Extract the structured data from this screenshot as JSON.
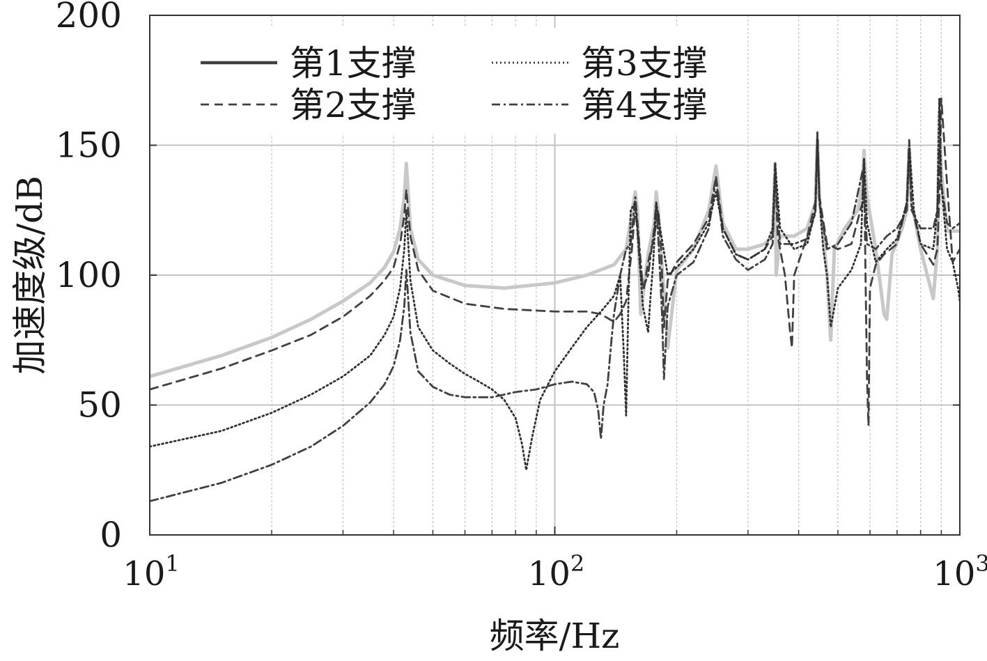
{
  "chart_data": {
    "type": "line",
    "title": "",
    "xlabel": "频率/Hz",
    "ylabel": "加速度级/dB",
    "xscale": "log",
    "xlim": [
      10,
      1000
    ],
    "ylim": [
      0,
      200
    ],
    "x_ticks": [
      {
        "value": 10,
        "base": "10",
        "exp": "1"
      },
      {
        "value": 100,
        "base": "10",
        "exp": "2"
      },
      {
        "value": 1000,
        "base": "10",
        "exp": "3"
      }
    ],
    "y_ticks": [
      {
        "value": 0,
        "label": "0"
      },
      {
        "value": 50,
        "label": "50"
      },
      {
        "value": 100,
        "label": "100"
      },
      {
        "value": 150,
        "label": "150"
      },
      {
        "value": 200,
        "label": "200"
      }
    ],
    "grid": true,
    "legend_position": "top-left",
    "legend_columns": 2,
    "series": [
      {
        "name": "第1支撑",
        "color": "#c8c8c8",
        "dash": "solid",
        "x": [
          10,
          15,
          20,
          25,
          30,
          35,
          38,
          40,
          41.5,
          42.5,
          43,
          44,
          46,
          50,
          60,
          75,
          100,
          120,
          140,
          150,
          155,
          158,
          160,
          163,
          170,
          176,
          178,
          180,
          190,
          200,
          220,
          240,
          250,
          260,
          280,
          300,
          330,
          345,
          350,
          352,
          360,
          390,
          420,
          440,
          445,
          450,
          470,
          480,
          490,
          520,
          560,
          575,
          580,
          590,
          620,
          650,
          660,
          680,
          720,
          740,
          750,
          760,
          800,
          860,
          880,
          885,
          890,
          900,
          930,
          1000
        ],
        "y": [
          61,
          69,
          76,
          83,
          90,
          97,
          103,
          109,
          118,
          130,
          143,
          118,
          106,
          100,
          96,
          95,
          97,
          100,
          104,
          110,
          124,
          132,
          125,
          85,
          108,
          120,
          132,
          125,
          72,
          102,
          110,
          125,
          142,
          120,
          110,
          110,
          112,
          115,
          143,
          100,
          115,
          115,
          118,
          128,
          152,
          130,
          100,
          75,
          110,
          118,
          125,
          135,
          148,
          130,
          110,
          85,
          83,
          108,
          118,
          125,
          150,
          128,
          110,
          91,
          110,
          135,
          163,
          140,
          117,
          117
        ]
      },
      {
        "name": "第2支撑",
        "color": "#404040",
        "dash": "12,8",
        "x": [
          10,
          15,
          20,
          25,
          30,
          35,
          38,
          40,
          41.5,
          42.5,
          43,
          44,
          46,
          50,
          60,
          75,
          100,
          120,
          130,
          140,
          145,
          150,
          152,
          155,
          158,
          160,
          163,
          166,
          170,
          176,
          180,
          183,
          186,
          190,
          200,
          220,
          240,
          250,
          260,
          280,
          300,
          330,
          345,
          350,
          355,
          370,
          380,
          385,
          390,
          420,
          440,
          445,
          450,
          470,
          500,
          540,
          575,
          580,
          585,
          590,
          595,
          600,
          620,
          650,
          700,
          740,
          750,
          760,
          800,
          860,
          880,
          890,
          900,
          930,
          960,
          1000
        ],
        "y": [
          56,
          64,
          71,
          77,
          84,
          92,
          98,
          103,
          112,
          123,
          133,
          115,
          102,
          94,
          89,
          87,
          86,
          86,
          85,
          82,
          85,
          90,
          98,
          110,
          126,
          118,
          100,
          95,
          105,
          115,
          125,
          110,
          80,
          98,
          105,
          112,
          122,
          138,
          118,
          108,
          106,
          110,
          115,
          143,
          115,
          100,
          80,
          72,
          100,
          115,
          128,
          155,
          130,
          112,
          110,
          112,
          128,
          145,
          100,
          60,
          42,
          95,
          104,
          108,
          112,
          128,
          152,
          127,
          112,
          104,
          110,
          130,
          168,
          135,
          105,
          110
        ]
      },
      {
        "name": "第3支撑",
        "color": "#303030",
        "dash": "2,4",
        "x": [
          10,
          15,
          20,
          25,
          30,
          35,
          38,
          40,
          41.5,
          42.5,
          43,
          44,
          46,
          50,
          55,
          60,
          65,
          70,
          75,
          80,
          83,
          85,
          88,
          92,
          100,
          110,
          120,
          130,
          140,
          145,
          148,
          150,
          152,
          154,
          158,
          162,
          165,
          170,
          172,
          175,
          178,
          182,
          190,
          200,
          220,
          240,
          250,
          260,
          280,
          300,
          330,
          345,
          350,
          360,
          390,
          420,
          440,
          445,
          450,
          460,
          470,
          480,
          500,
          540,
          570,
          580,
          590,
          620,
          660,
          700,
          740,
          750,
          770,
          800,
          860,
          880,
          890,
          900,
          930,
          960,
          990,
          1000
        ],
        "y": [
          34,
          40,
          47,
          54,
          61,
          69,
          77,
          84,
          95,
          110,
          125,
          98,
          80,
          71,
          66,
          62,
          59,
          56,
          52,
          45,
          35,
          25,
          38,
          52,
          63,
          72,
          80,
          86,
          92,
          100,
          70,
          46,
          90,
          125,
          128,
          105,
          88,
          78,
          90,
          105,
          128,
          118,
          100,
          103,
          110,
          120,
          132,
          118,
          108,
          106,
          110,
          118,
          143,
          118,
          110,
          112,
          125,
          152,
          130,
          110,
          100,
          80,
          95,
          102,
          112,
          145,
          120,
          105,
          110,
          114,
          128,
          150,
          125,
          112,
          110,
          125,
          168,
          135,
          110,
          105,
          95,
          90
        ]
      },
      {
        "name": "第4支撑",
        "color": "#404040",
        "dash": "12,5,3,5",
        "x": [
          10,
          15,
          20,
          25,
          30,
          35,
          38,
          40,
          41.5,
          42.5,
          43,
          44,
          46,
          50,
          55,
          60,
          70,
          80,
          90,
          100,
          110,
          120,
          125,
          128,
          130,
          132,
          135,
          138,
          140,
          145,
          150,
          154,
          158,
          162,
          165,
          170,
          176,
          178,
          180,
          184,
          186,
          190,
          200,
          220,
          240,
          250,
          260,
          280,
          300,
          330,
          345,
          350,
          360,
          390,
          420,
          440,
          445,
          450,
          470,
          500,
          540,
          575,
          580,
          590,
          620,
          660,
          700,
          740,
          750,
          760,
          800,
          860,
          880,
          890,
          900,
          930,
          960,
          1000
        ],
        "y": [
          13,
          20,
          27,
          34,
          42,
          51,
          58,
          65,
          75,
          88,
          102,
          78,
          63,
          57,
          54,
          53,
          53,
          55,
          56,
          58,
          59,
          58,
          55,
          48,
          37,
          50,
          58,
          75,
          85,
          100,
          110,
          112,
          130,
          110,
          95,
          100,
          118,
          128,
          115,
          85,
          60,
          88,
          100,
          105,
          118,
          137,
          115,
          106,
          102,
          106,
          112,
          137,
          112,
          112,
          114,
          124,
          155,
          128,
          110,
          112,
          120,
          140,
          130,
          112,
          110,
          115,
          118,
          125,
          148,
          125,
          118,
          118,
          125,
          150,
          135,
          120,
          118,
          120
        ]
      }
    ]
  }
}
